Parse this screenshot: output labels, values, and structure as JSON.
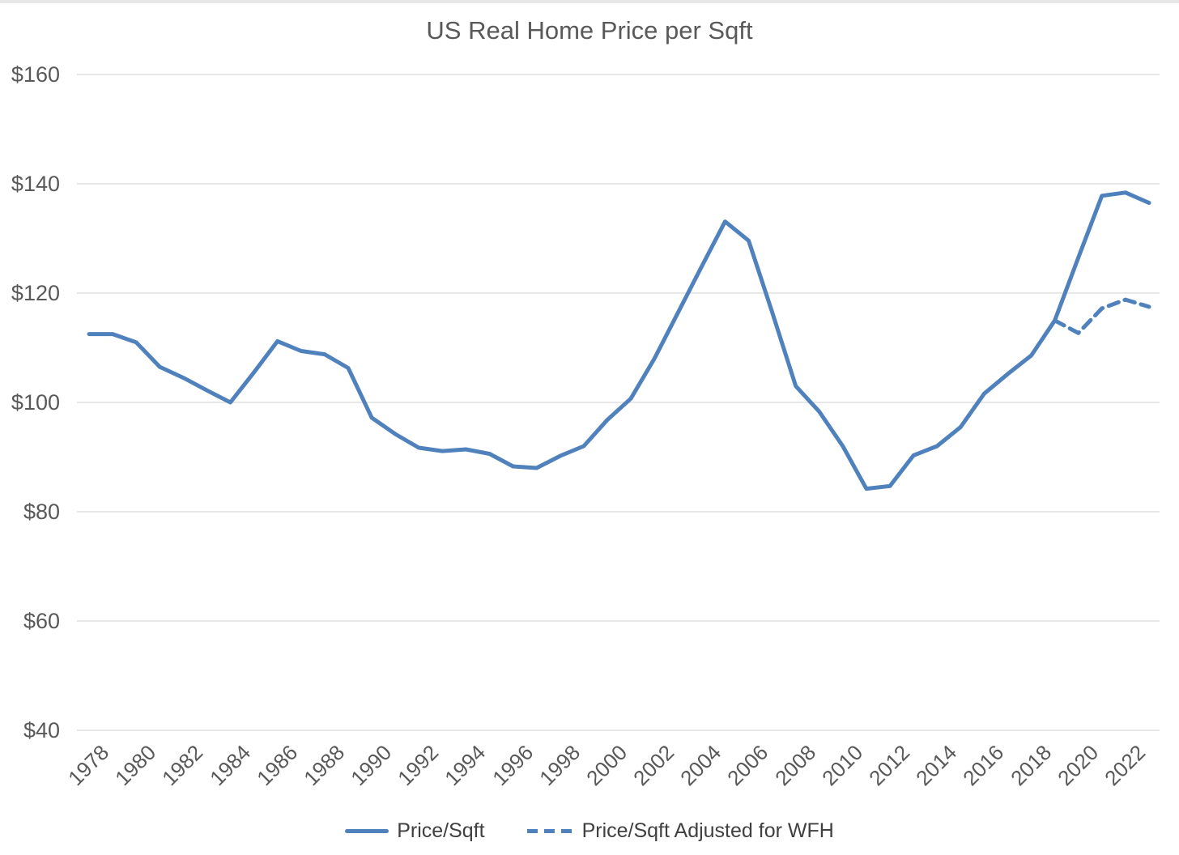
{
  "page": {
    "top_strip_color": "#e7e7e7",
    "background_color": "#ffffff"
  },
  "chart_data": {
    "type": "line",
    "title": "US Real Home Price per Sqft",
    "xlabel": "",
    "ylabel": "",
    "ylim": [
      40,
      160
    ],
    "grid": true,
    "legend_position": "bottom",
    "line_color": "#4F81BD",
    "gridline_color": "#D9D9D9",
    "y_tick_prefix": "$",
    "y_ticks": [
      160,
      140,
      120,
      100,
      80,
      60,
      40
    ],
    "x_tick_years": [
      1978,
      1980,
      1982,
      1984,
      1986,
      1988,
      1990,
      1992,
      1994,
      1996,
      1998,
      2000,
      2002,
      2004,
      2006,
      2008,
      2010,
      2012,
      2014,
      2016,
      2018,
      2020,
      2022
    ],
    "x": [
      1978,
      1979,
      1980,
      1981,
      1982,
      1983,
      1984,
      1985,
      1986,
      1987,
      1988,
      1989,
      1990,
      1991,
      1992,
      1993,
      1994,
      1995,
      1996,
      1997,
      1998,
      1999,
      2000,
      2001,
      2002,
      2003,
      2004,
      2005,
      2006,
      2007,
      2008,
      2009,
      2010,
      2011,
      2012,
      2013,
      2014,
      2015,
      2016,
      2017,
      2018,
      2019,
      2020,
      2021,
      2022,
      2023
    ],
    "series": [
      {
        "name": "Price/Sqft",
        "style": "solid",
        "values": [
          112.5,
          112.5,
          111.0,
          106.5,
          104.5,
          102.2,
          100.0,
          105.5,
          111.2,
          109.4,
          108.8,
          106.3,
          97.2,
          94.2,
          91.7,
          91.1,
          91.4,
          90.6,
          88.3,
          88.0,
          90.2,
          92.0,
          96.8,
          100.7,
          108.0,
          116.4,
          124.8,
          133.1,
          129.6,
          116.5,
          103.0,
          98.3,
          92.0,
          84.2,
          84.7,
          90.3,
          92.0,
          95.5,
          101.6,
          105.2,
          108.6,
          115.0,
          126.5,
          137.8,
          138.4,
          136.5
        ]
      },
      {
        "name": "Price/Sqft Adjusted for WFH",
        "style": "dashed",
        "values": [
          null,
          null,
          null,
          null,
          null,
          null,
          null,
          null,
          null,
          null,
          null,
          null,
          null,
          null,
          null,
          null,
          null,
          null,
          null,
          null,
          null,
          null,
          null,
          null,
          null,
          null,
          null,
          null,
          null,
          null,
          null,
          null,
          null,
          null,
          null,
          null,
          null,
          null,
          null,
          null,
          null,
          115.0,
          112.7,
          117.2,
          118.8,
          117.5
        ]
      }
    ]
  }
}
